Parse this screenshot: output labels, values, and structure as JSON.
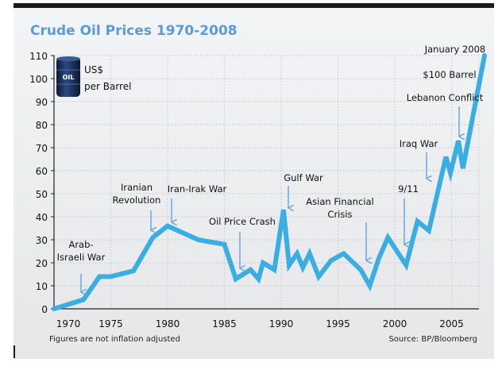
{
  "chart_data": {
    "type": "line",
    "title": "Crude Oil Prices 1970-2008",
    "unit_label": [
      "US$",
      "per Barrel"
    ],
    "barrel_label": "OIL",
    "footnote": "Figures are not inflation adjusted",
    "source": "Source: BP/Bloomberg",
    "xlim": [
      1970,
      2008
    ],
    "ylim": [
      0,
      110
    ],
    "x_ticks": [
      1970,
      1975,
      1980,
      1985,
      1990,
      1995,
      2000,
      2005
    ],
    "x_tick_labels": [
      "1970",
      "1975",
      "1980",
      "1985",
      "1990",
      "1995",
      "2000",
      "2005"
    ],
    "y_ticks": [
      0,
      10,
      20,
      30,
      40,
      50,
      60,
      70,
      80,
      90,
      100,
      110
    ],
    "y_tick_labels": [
      "0",
      "10",
      "20",
      "30",
      "40",
      "50",
      "60",
      "70",
      "80",
      "90",
      "100",
      "110"
    ],
    "grid": true,
    "colors": {
      "line": "#3aaee2",
      "title": "#5b9bd5",
      "arrow": "#6aa6e0",
      "background": "#eeeff1"
    },
    "series": [
      {
        "x": [
          1970,
          1972.6,
          1974,
          1975,
          1977,
          1978.7,
          1980,
          1982.7,
          1985,
          1986,
          1987.3,
          1988,
          1988.4,
          1989.4,
          1990.2,
          1990.7,
          1991.4,
          1991.9,
          1992.5,
          1993.3,
          1994.4,
          1995.5,
          1997,
          1997.8,
          1998.6,
          1999.4,
          2001,
          2002,
          2003,
          2004.5,
          2004.9,
          2005.6,
          2006,
          2007.9
        ],
        "y": [
          0,
          4,
          14,
          14,
          16.5,
          31,
          36,
          30,
          28,
          13,
          17,
          13,
          20,
          17,
          43,
          19,
          24,
          18,
          24,
          14,
          21,
          24,
          17,
          10,
          22,
          31,
          19,
          38,
          34,
          66,
          59,
          73,
          61,
          110
        ]
      }
    ],
    "annotations": [
      {
        "lines": [
          "Arab-",
          "Israeli War"
        ],
        "arrow": true
      },
      {
        "lines": [
          "Iranian",
          "Revolution"
        ],
        "arrow": true
      },
      {
        "lines": [
          "Iran-Irak War"
        ],
        "arrow": true
      },
      {
        "lines": [
          "Oil Price Crash"
        ],
        "arrow": true
      },
      {
        "lines": [
          "Gulf War"
        ],
        "arrow": true
      },
      {
        "lines": [
          "Asian Financial",
          "Crisis"
        ],
        "arrow": true
      },
      {
        "lines": [
          "9/11"
        ],
        "arrow": true
      },
      {
        "lines": [
          "Iraq War"
        ],
        "arrow": true
      },
      {
        "lines": [
          "Lebanon Conflict"
        ],
        "arrow": true
      },
      {
        "lines": [
          "$100 Barrel"
        ],
        "arrow": false
      },
      {
        "lines": [
          "January 2008"
        ],
        "arrow": false
      }
    ]
  }
}
